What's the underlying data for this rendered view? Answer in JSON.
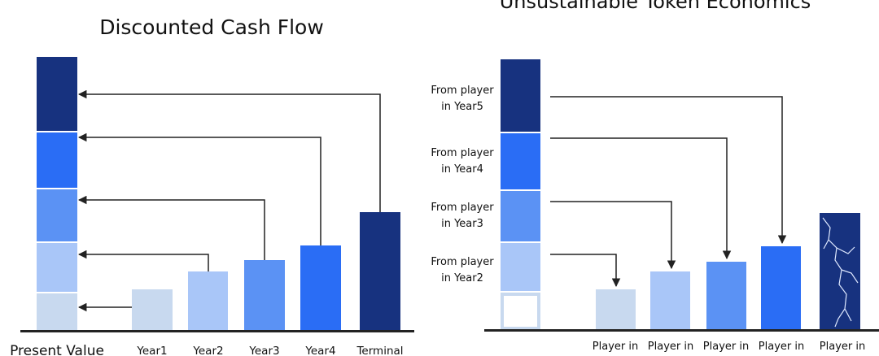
{
  "left_panel": {
    "title_lines": [
      "",
      "Discounted Cash Flow"
    ],
    "stack_label": "Present Value",
    "bar_labels": [
      "Year1",
      "Year2",
      "Year3",
      "Year4",
      "Terminal"
    ]
  },
  "right_panel": {
    "title_lines": [
      "Unsustainable Token Economics"
    ],
    "stack_labels": [
      [
        "From player",
        "in Year5"
      ],
      [
        "From player",
        "in Year4"
      ],
      [
        "From player",
        "in Year3"
      ],
      [
        "From player",
        "in Year2"
      ]
    ],
    "bar_labels": [
      "Player in",
      "Player in",
      "Player in",
      "Player in",
      "Player in"
    ]
  },
  "colors": {
    "navy": "#17327f",
    "blue": "#2a6df5",
    "mid_blue": "#5b92f4",
    "light_blue": "#a9c6f8",
    "pale_blue": "#c8d9ef",
    "axis": "#222222",
    "arrow": "#222222"
  }
}
